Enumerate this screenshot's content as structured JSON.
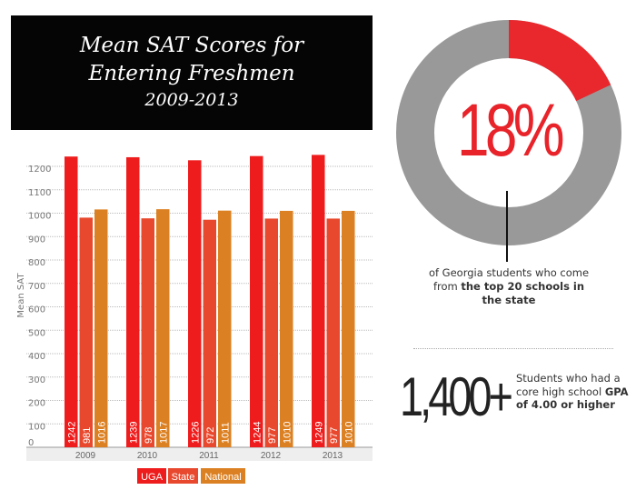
{
  "chart_data": {
    "type": "bar",
    "title": "Mean SAT Scores for Entering Freshmen",
    "subtitle": "2009-2013",
    "ylabel": "Mean SAT",
    "xlabel": "",
    "ylim": [
      0,
      1250
    ],
    "yticks": [
      0,
      100,
      200,
      300,
      400,
      500,
      600,
      700,
      800,
      900,
      1000,
      1100,
      1200
    ],
    "categories": [
      "2009",
      "2010",
      "2011",
      "2012",
      "2013"
    ],
    "series": [
      {
        "name": "UGA",
        "color": "#ee1c1c",
        "values": [
          1242,
          1239,
          1226,
          1244,
          1249
        ]
      },
      {
        "name": "State",
        "color": "#e8492e",
        "values": [
          981,
          978,
          972,
          977,
          977
        ]
      },
      {
        "name": "National",
        "color": "#dc8123",
        "values": [
          1016,
          1017,
          1011,
          1010,
          1010
        ]
      }
    ],
    "legend": "bottom",
    "grid": true
  },
  "donut": {
    "percent_label": "18%",
    "value": 18,
    "color": "#e8282c",
    "rest_color": "#999999",
    "desc_pre": "of Georgia students who come from ",
    "desc_bold": "the top 20 schools in the state"
  },
  "stat": {
    "value": "1,400+",
    "desc_pre": "Students who had a core high school ",
    "desc_bold": "GPA of 4.00 or higher"
  }
}
